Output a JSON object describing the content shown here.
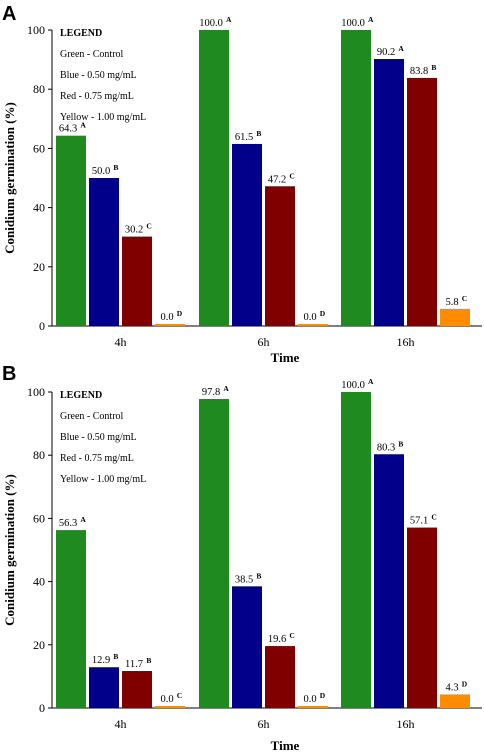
{
  "colors": {
    "Green": "#1f8a1f",
    "Blue": "#00008b",
    "Red": "#800000",
    "Yellow": "#ff8c00"
  },
  "chart_data": [
    {
      "panel": "A",
      "type": "bar",
      "xlabel": "Time",
      "ylabel": "Conidium germination (%)",
      "ylim": [
        0,
        100
      ],
      "yticks": [
        0,
        20,
        40,
        60,
        80,
        100
      ],
      "categories": [
        "4h",
        "6h",
        "16h"
      ],
      "legend": {
        "title": "LEGEND",
        "lines": [
          "Green - Control",
          "Blue - 0.50 mg/mL",
          "Red - 0.75 mg/mL",
          "Yellow - 1.00 mg/mL"
        ]
      },
      "series": [
        {
          "color": "Green",
          "values": [
            64.3,
            100.0,
            100.0
          ],
          "labels": [
            "64.3",
            "100.0",
            "100.0"
          ],
          "letters": [
            "A",
            "A",
            "A"
          ]
        },
        {
          "color": "Blue",
          "values": [
            50.0,
            61.5,
            90.2
          ],
          "labels": [
            "50.0",
            "61.5",
            "90.2"
          ],
          "letters": [
            "B",
            "B",
            "A"
          ]
        },
        {
          "color": "Red",
          "values": [
            30.2,
            47.2,
            83.8
          ],
          "labels": [
            "30.2",
            "47.2",
            "83.8"
          ],
          "letters": [
            "C",
            "C",
            "B"
          ]
        },
        {
          "color": "Yellow",
          "values": [
            0.0,
            0.0,
            5.8
          ],
          "labels": [
            "0.0",
            "0.0",
            "5.8"
          ],
          "letters": [
            "D",
            "D",
            "C"
          ]
        }
      ]
    },
    {
      "panel": "B",
      "type": "bar",
      "xlabel": "Time",
      "ylabel": "Conidium germination (%)",
      "ylim": [
        0,
        100
      ],
      "yticks": [
        0,
        20,
        40,
        60,
        80,
        100
      ],
      "categories": [
        "4h",
        "6h",
        "16h"
      ],
      "legend": {
        "title": "LEGEND",
        "lines": [
          "Green - Control",
          "Blue - 0.50 mg/mL",
          "Red - 0.75 mg/mL",
          "Yellow - 1.00 mg/mL"
        ]
      },
      "series": [
        {
          "color": "Green",
          "values": [
            56.3,
            97.8,
            100.0
          ],
          "labels": [
            "56.3",
            "97.8",
            "100.0"
          ],
          "letters": [
            "A",
            "A",
            "A"
          ]
        },
        {
          "color": "Blue",
          "values": [
            12.9,
            38.5,
            80.3
          ],
          "labels": [
            "12.9",
            "38.5",
            "80.3"
          ],
          "letters": [
            "B",
            "B",
            "B"
          ]
        },
        {
          "color": "Red",
          "values": [
            11.7,
            19.6,
            57.1
          ],
          "labels": [
            "11.7",
            "19.6",
            "57.1"
          ],
          "letters": [
            "B",
            "C",
            "C"
          ]
        },
        {
          "color": "Yellow",
          "values": [
            0.0,
            0.0,
            4.3
          ],
          "labels": [
            "0.0",
            "0.0",
            "4.3"
          ],
          "letters": [
            "C",
            "D",
            "D"
          ]
        }
      ]
    }
  ]
}
